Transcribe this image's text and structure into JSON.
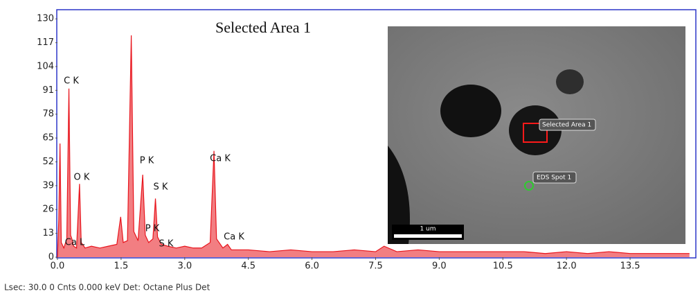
{
  "chart_data": {
    "type": "area",
    "title": "Selected Area 1",
    "color": "#e8141c",
    "x": [
      0.0,
      0.03,
      0.06,
      0.09,
      0.15,
      0.22,
      0.27,
      0.31,
      0.34,
      0.38,
      0.45,
      0.52,
      0.56,
      0.65,
      0.8,
      1.0,
      1.2,
      1.4,
      1.49,
      1.55,
      1.65,
      1.74,
      1.8,
      1.9,
      2.01,
      2.07,
      2.15,
      2.25,
      2.31,
      2.36,
      2.45,
      2.6,
      2.8,
      3.0,
      3.2,
      3.4,
      3.6,
      3.69,
      3.75,
      3.9,
      4.01,
      4.1,
      4.5,
      5.0,
      5.5,
      6.0,
      6.5,
      7.0,
      7.5,
      7.7,
      8.0,
      8.5,
      9.0,
      9.5,
      10.0,
      10.5,
      11.0,
      11.5,
      12.0,
      12.5,
      13.0,
      13.5,
      14.0,
      14.9
    ],
    "values": [
      0,
      20,
      62,
      8,
      5,
      10,
      92,
      12,
      10,
      6,
      5,
      40,
      8,
      5,
      6,
      5,
      6,
      7,
      22,
      8,
      9,
      121,
      14,
      9,
      45,
      12,
      8,
      10,
      32,
      11,
      7,
      6,
      5,
      6,
      5,
      5,
      8,
      58,
      10,
      5,
      7,
      4,
      4,
      3,
      4,
      3,
      3,
      4,
      3,
      6,
      3,
      4,
      3,
      3,
      3,
      3,
      3,
      2,
      3,
      2,
      3,
      2,
      2,
      2
    ],
    "xlim": [
      0,
      15.05
    ],
    "ylim": [
      0,
      135
    ],
    "xticks": [
      {
        "value": 0,
        "label": "0.0"
      },
      1.5,
      {
        "value": 3,
        "label": "3.0"
      },
      4.5,
      {
        "value": 6,
        "label": "6.0"
      },
      7.5,
      {
        "value": 9,
        "label": "9.0"
      },
      10.5,
      {
        "value": 12,
        "label": "12.0"
      },
      13.5
    ],
    "yticks": [
      0,
      13,
      26,
      39,
      52,
      65,
      78,
      91,
      104,
      117,
      130
    ],
    "annotations": [
      "C  K",
      "O  K",
      "Ca L",
      "P  K",
      "S  K",
      "Ca K",
      "P  K",
      "S  K",
      "Ca K"
    ]
  },
  "inset": {
    "area_label": "Selected Area 1",
    "spot_label": "EDS Spot 1",
    "scale_label": "1 um"
  },
  "status_bar": "Lsec: 30.0 0 Cnts  0.000 keV Det: Octane Plus Det"
}
